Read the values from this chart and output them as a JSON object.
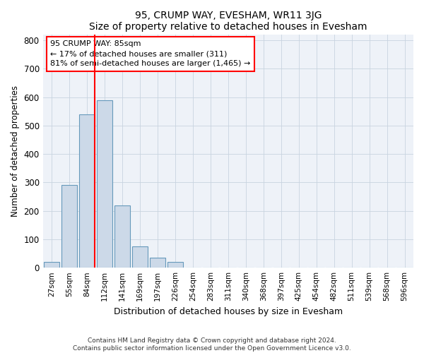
{
  "title": "95, CRUMP WAY, EVESHAM, WR11 3JG",
  "subtitle": "Size of property relative to detached houses in Evesham",
  "xlabel": "Distribution of detached houses by size in Evesham",
  "ylabel": "Number of detached properties",
  "footnote1": "Contains HM Land Registry data © Crown copyright and database right 2024.",
  "footnote2": "Contains public sector information licensed under the Open Government Licence v3.0.",
  "bin_labels": [
    "27sqm",
    "55sqm",
    "84sqm",
    "112sqm",
    "141sqm",
    "169sqm",
    "197sqm",
    "226sqm",
    "254sqm",
    "283sqm",
    "311sqm",
    "340sqm",
    "368sqm",
    "397sqm",
    "425sqm",
    "454sqm",
    "482sqm",
    "511sqm",
    "539sqm",
    "568sqm",
    "596sqm"
  ],
  "bar_heights": [
    20,
    290,
    540,
    590,
    220,
    75,
    35,
    20,
    0,
    0,
    0,
    0,
    0,
    0,
    0,
    0,
    0,
    0,
    0,
    0,
    0
  ],
  "bar_color": "#ccd9e8",
  "bar_edge_color": "#6699bb",
  "annotation_line1": "95 CRUMP WAY: 85sqm",
  "annotation_line2": "← 17% of detached houses are smaller (311)",
  "annotation_line3": "81% of semi-detached houses are larger (1,465) →",
  "ylim": [
    0,
    820
  ],
  "yticks": [
    0,
    100,
    200,
    300,
    400,
    500,
    600,
    700,
    800
  ],
  "grid_color": "#c8d4e0",
  "background_color": "#eef2f8"
}
